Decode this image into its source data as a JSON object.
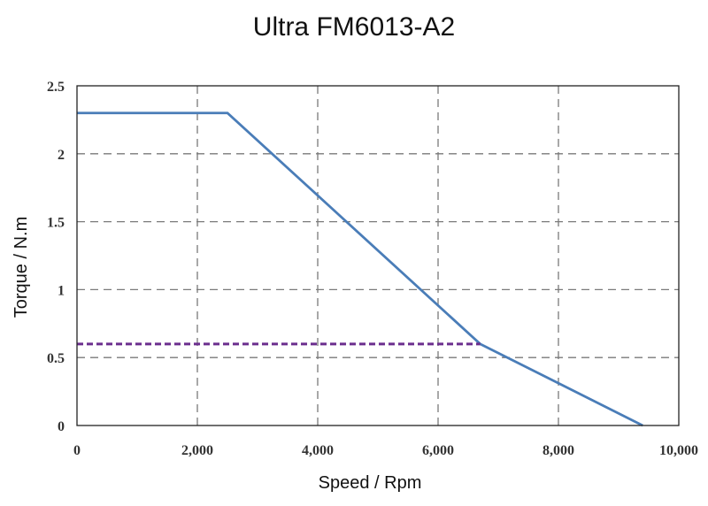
{
  "chart_data": {
    "type": "line",
    "title": "Ultra FM6013-A2",
    "xlabel": "Speed / Rpm",
    "ylabel": "Torque / N.m",
    "xlim": [
      0,
      10000
    ],
    "ylim": [
      0,
      2.5
    ],
    "x_ticks": [
      0,
      2000,
      4000,
      6000,
      8000,
      10000
    ],
    "x_tick_labels": [
      "0",
      "2,000",
      "4,000",
      "6,000",
      "8,000",
      "10,000"
    ],
    "y_ticks": [
      0,
      0.5,
      1,
      1.5,
      2,
      2.5
    ],
    "y_tick_labels": [
      "0",
      "0.5",
      "1",
      "1.5",
      "2",
      "2.5"
    ],
    "grid": true,
    "series": [
      {
        "color": "#4a7db8",
        "style": "solid",
        "x": [
          0,
          2500,
          6700,
          9400
        ],
        "y": [
          2.3,
          2.3,
          0.6,
          0
        ]
      },
      {
        "color": "#6b2e8e",
        "style": "dashed",
        "x": [
          0,
          6700
        ],
        "y": [
          0.6,
          0.6
        ]
      }
    ]
  }
}
